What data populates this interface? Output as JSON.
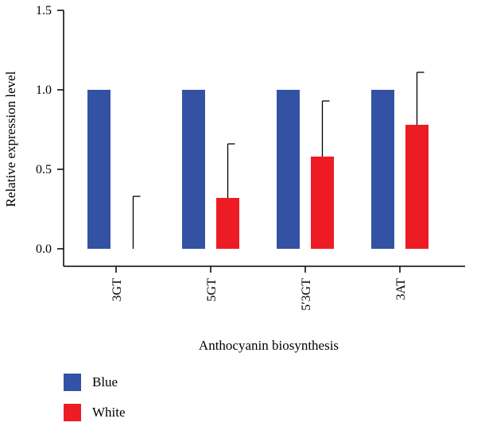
{
  "chart_data": {
    "type": "bar",
    "categories": [
      "3GT",
      "5GT",
      "5′3GT",
      "3AT"
    ],
    "series": [
      {
        "name": "Blue",
        "color": "#3352a3",
        "values": [
          1.0,
          1.0,
          1.0,
          1.0
        ],
        "error": [
          0,
          0,
          0,
          0
        ]
      },
      {
        "name": "White",
        "color": "#ed1c24",
        "values": [
          0.0,
          0.32,
          0.58,
          0.78
        ],
        "error": [
          0.33,
          0.34,
          0.35,
          0.33
        ]
      }
    ],
    "xlabel": "Anthocyanin biosynthesis",
    "ylabel": "Relative expression level",
    "ylim": [
      0,
      1.5
    ],
    "yticks": [
      "0.0",
      "0.5",
      "1.0",
      "1.5"
    ],
    "grid": false,
    "legend_position": "bottom-left"
  }
}
